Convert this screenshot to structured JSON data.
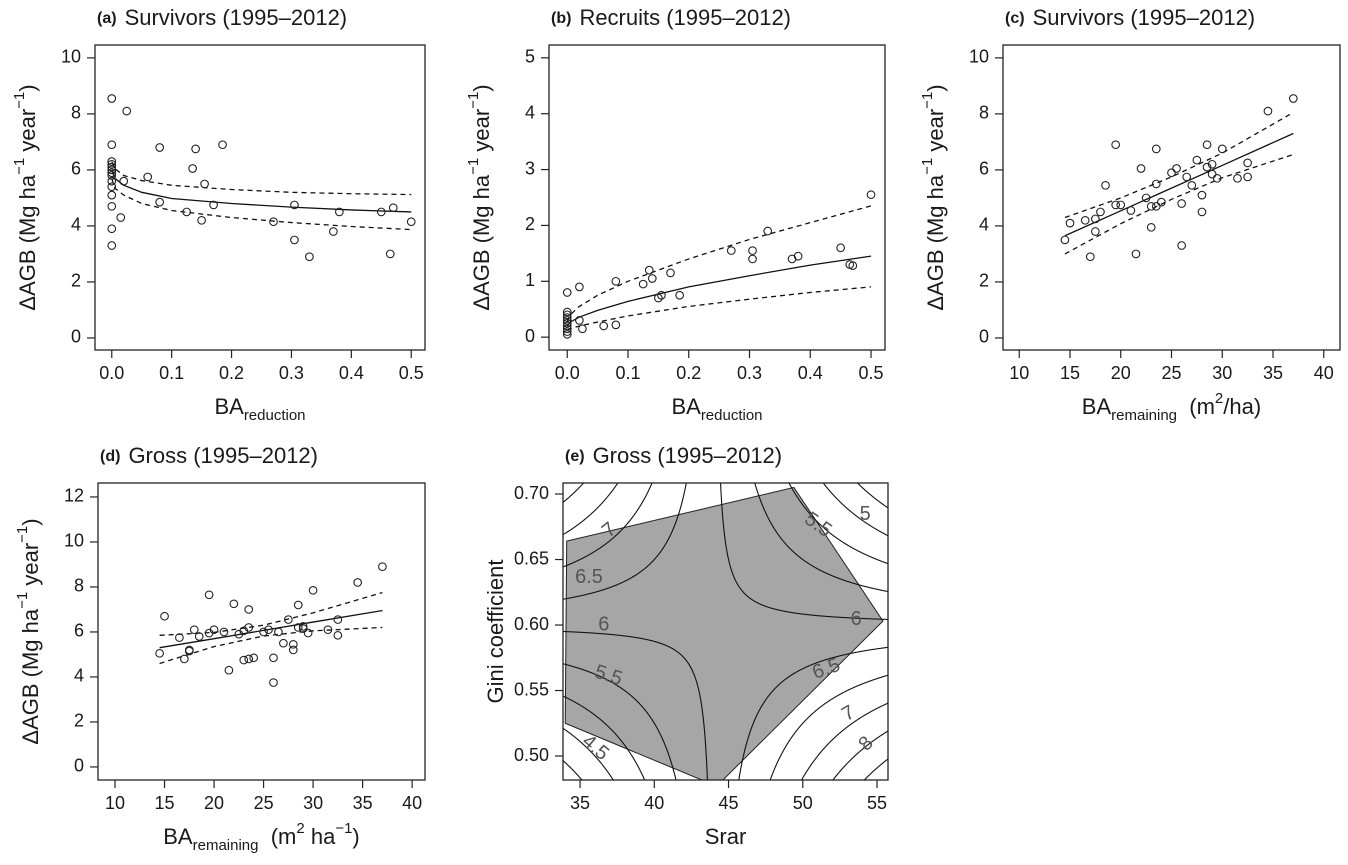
{
  "chart_data": [
    {
      "type": "scatter",
      "panel": "(a)",
      "title": "Survivors (1995–2012)",
      "xlabel": [
        {
          "text": "BA"
        },
        {
          "text": "reduction",
          "script": "sub"
        }
      ],
      "ylabel": [
        {
          "text": "ΔAGB (Mg ha"
        },
        {
          "text": "−1",
          "script": "super"
        },
        {
          "text": " year"
        },
        {
          "text": "−1",
          "script": "super"
        },
        {
          "text": ")"
        }
      ],
      "x": [
        0,
        0,
        0,
        0,
        0,
        0,
        0,
        0,
        0,
        0,
        0,
        0,
        0,
        0,
        0.025,
        0.02,
        0.015,
        0.06,
        0.08,
        0.08,
        0.125,
        0.135,
        0.14,
        0.15,
        0.155,
        0.17,
        0.185,
        0.27,
        0.305,
        0.305,
        0.33,
        0.37,
        0.38,
        0.45,
        0.465,
        0.47,
        0.5
      ],
      "y": [
        8.55,
        6.9,
        6.3,
        6.2,
        6.1,
        6.0,
        5.9,
        5.8,
        5.6,
        5.4,
        5.1,
        4.7,
        3.9,
        3.3,
        8.1,
        5.6,
        4.3,
        5.75,
        6.8,
        4.85,
        4.5,
        6.05,
        6.75,
        4.2,
        5.5,
        4.75,
        6.9,
        4.15,
        4.75,
        3.5,
        2.9,
        3.8,
        4.5,
        4.5,
        3.0,
        4.65,
        4.15
      ],
      "color": "#222222",
      "lines": [
        {
          "dash": false,
          "x": [
            0,
            0.005,
            0.02,
            0.05,
            0.1,
            0.2,
            0.3,
            0.4,
            0.5
          ],
          "y": [
            6.0,
            5.7,
            5.45,
            5.2,
            4.98,
            4.8,
            4.67,
            4.57,
            4.5
          ]
        },
        {
          "dash": true,
          "x": [
            0,
            0.005,
            0.02,
            0.05,
            0.1,
            0.2,
            0.3,
            0.4,
            0.5
          ],
          "y": [
            6.3,
            6.05,
            5.8,
            5.62,
            5.45,
            5.3,
            5.2,
            5.15,
            5.12
          ]
        },
        {
          "dash": true,
          "x": [
            0,
            0.005,
            0.02,
            0.05,
            0.1,
            0.2,
            0.3,
            0.4,
            0.5
          ],
          "y": [
            5.7,
            5.35,
            5.1,
            4.8,
            4.55,
            4.3,
            4.12,
            3.98,
            3.87
          ]
        }
      ],
      "xlim": [
        -0.028,
        0.523
      ],
      "ylim": [
        -0.43,
        10.46
      ],
      "xticks": [
        {
          "value": 0,
          "label": "0.0"
        },
        0.1,
        0.2,
        0.3,
        0.4,
        0.5
      ],
      "yticks": [
        0,
        2,
        4,
        6,
        8,
        10
      ]
    },
    {
      "type": "scatter",
      "panel": "(b)",
      "title": "Recruits (1995–2012)",
      "xlabel": [
        {
          "text": "BA"
        },
        {
          "text": "reduction",
          "script": "sub"
        }
      ],
      "ylabel": [
        {
          "text": "ΔAGB (Mg ha"
        },
        {
          "text": "−1",
          "script": "super"
        },
        {
          "text": " year"
        },
        {
          "text": "−1",
          "script": "super"
        },
        {
          "text": ")"
        }
      ],
      "x": [
        0,
        0,
        0,
        0,
        0,
        0,
        0,
        0,
        0,
        0,
        0.02,
        0.02,
        0.025,
        0.06,
        0.08,
        0.08,
        0.125,
        0.135,
        0.14,
        0.15,
        0.155,
        0.17,
        0.185,
        0.27,
        0.305,
        0.305,
        0.33,
        0.37,
        0.38,
        0.45,
        0.465,
        0.47,
        0.5
      ],
      "y": [
        0.45,
        0.4,
        0.35,
        0.3,
        0.25,
        0.2,
        0.15,
        0.1,
        0.05,
        0.8,
        0.9,
        0.3,
        0.15,
        0.2,
        0.22,
        1.0,
        0.95,
        1.2,
        1.05,
        0.7,
        0.75,
        1.15,
        0.75,
        1.55,
        1.4,
        1.55,
        1.9,
        1.4,
        1.45,
        1.6,
        1.3,
        1.28,
        2.55
      ],
      "color": "#222222",
      "lines": [
        {
          "dash": false,
          "x": [
            0,
            0.005,
            0.02,
            0.05,
            0.1,
            0.2,
            0.3,
            0.4,
            0.5
          ],
          "y": [
            0.2,
            0.27,
            0.36,
            0.48,
            0.64,
            0.9,
            1.1,
            1.29,
            1.45
          ]
        },
        {
          "dash": true,
          "x": [
            0,
            0.005,
            0.02,
            0.05,
            0.1,
            0.2,
            0.3,
            0.4,
            0.5
          ],
          "y": [
            0.28,
            0.4,
            0.55,
            0.75,
            1.0,
            1.4,
            1.75,
            2.05,
            2.35
          ]
        },
        {
          "dash": true,
          "x": [
            0,
            0.005,
            0.02,
            0.05,
            0.1,
            0.2,
            0.3,
            0.4,
            0.5
          ],
          "y": [
            0.12,
            0.15,
            0.2,
            0.27,
            0.38,
            0.55,
            0.68,
            0.8,
            0.9
          ]
        }
      ],
      "xlim": [
        -0.03,
        0.523
      ],
      "ylim": [
        -0.23,
        5.23
      ],
      "xticks": [
        {
          "value": 0,
          "label": "0.0"
        },
        0.1,
        0.2,
        0.3,
        0.4,
        0.5
      ],
      "yticks": [
        0,
        1,
        2,
        3,
        4,
        5
      ]
    },
    {
      "type": "scatter",
      "panel": "(c)",
      "title": "Survivors (1995–2012)",
      "xlabel": [
        {
          "text": "BA"
        },
        {
          "text": "remaining",
          "script": "sub"
        },
        {
          "text": "  (m"
        },
        {
          "text": "2",
          "script": "super"
        },
        {
          "text": "/ha)"
        }
      ],
      "ylabel": [
        {
          "text": "ΔAGB (Mg ha"
        },
        {
          "text": "−1",
          "script": "super"
        },
        {
          "text": " year"
        },
        {
          "text": "−1",
          "script": "super"
        },
        {
          "text": ")"
        }
      ],
      "x": [
        14.5,
        15,
        16.5,
        17,
        17.5,
        17.5,
        18,
        18.5,
        19.5,
        19.5,
        20,
        21,
        21.5,
        22,
        22.5,
        23,
        23,
        23.5,
        23.5,
        23.5,
        24,
        25,
        25.5,
        26,
        26,
        26.5,
        27,
        27.5,
        28,
        28,
        28.5,
        28.5,
        29,
        29,
        29.5,
        30,
        31.5,
        32.5,
        32.5,
        34.5,
        37
      ],
      "y": [
        3.5,
        4.1,
        4.2,
        2.9,
        4.25,
        3.8,
        4.5,
        5.45,
        6.9,
        4.75,
        4.75,
        4.55,
        3.0,
        6.05,
        5.0,
        3.95,
        4.7,
        6.75,
        5.5,
        4.7,
        4.85,
        5.9,
        6.05,
        4.8,
        3.3,
        5.75,
        5.45,
        6.35,
        5.1,
        4.5,
        6.9,
        6.1,
        5.85,
        6.2,
        5.7,
        6.75,
        5.7,
        6.25,
        5.75,
        8.1,
        8.55
      ],
      "color": "#222222",
      "lines": [
        {
          "dash": false,
          "x": [
            14.5,
            20,
            25,
            30,
            37
          ],
          "y": [
            3.65,
            4.54,
            5.35,
            6.16,
            7.3
          ]
        },
        {
          "dash": true,
          "x": [
            14.5,
            20,
            25,
            30,
            37
          ],
          "y": [
            4.3,
            5.0,
            5.75,
            6.6,
            8.05
          ]
        },
        {
          "dash": true,
          "x": [
            14.5,
            20,
            25,
            30,
            37
          ],
          "y": [
            3.0,
            4.08,
            4.95,
            5.72,
            6.55
          ]
        }
      ],
      "xlim": [
        8.4,
        41.6
      ],
      "ylim": [
        -0.43,
        10.46
      ],
      "xticks": [
        10,
        15,
        20,
        25,
        30,
        35,
        40
      ],
      "yticks": [
        0,
        2,
        4,
        6,
        8,
        10
      ]
    },
    {
      "type": "scatter",
      "panel": "(d)",
      "title": "Gross (1995–2012)",
      "xlabel": [
        {
          "text": "BA"
        },
        {
          "text": "remaining",
          "script": "sub"
        },
        {
          "text": "  (m"
        },
        {
          "text": "2",
          "script": "super"
        },
        {
          "text": " ha"
        },
        {
          "text": "−1",
          "script": "super"
        },
        {
          "text": ")"
        }
      ],
      "ylabel": [
        {
          "text": "ΔAGB (Mg ha"
        },
        {
          "text": "−1",
          "script": "super"
        },
        {
          "text": " year"
        },
        {
          "text": "−1",
          "script": "super"
        },
        {
          "text": ")"
        }
      ],
      "x": [
        14.5,
        15,
        16.5,
        17,
        17.5,
        17.5,
        18,
        18.5,
        19.5,
        19.5,
        20,
        21,
        21.5,
        22,
        22.5,
        23,
        23,
        23.5,
        23.5,
        23.5,
        24,
        25,
        25.5,
        26,
        26,
        26.5,
        27,
        27.5,
        28,
        28,
        28.5,
        28.5,
        29,
        29,
        29.5,
        30,
        31.5,
        32.5,
        32.5,
        34.5,
        37
      ],
      "y": [
        5.05,
        6.7,
        5.75,
        4.8,
        5.2,
        5.15,
        6.1,
        5.8,
        7.65,
        5.95,
        6.1,
        6.0,
        4.3,
        7.25,
        5.9,
        4.75,
        6.05,
        7.0,
        6.2,
        4.8,
        4.85,
        6.0,
        6.1,
        4.85,
        3.75,
        6.0,
        5.5,
        6.55,
        5.2,
        5.45,
        7.2,
        6.2,
        6.15,
        6.25,
        5.95,
        7.85,
        6.1,
        6.55,
        5.85,
        8.2,
        8.9
      ],
      "color": "#222222",
      "lines": [
        {
          "dash": false,
          "x": [
            14.5,
            20,
            25,
            30,
            37
          ],
          "y": [
            5.3,
            5.7,
            6.07,
            6.44,
            6.95
          ]
        },
        {
          "dash": true,
          "x": [
            14.5,
            20,
            25,
            30,
            37
          ],
          "y": [
            5.85,
            5.98,
            6.3,
            6.85,
            7.75
          ]
        },
        {
          "dash": true,
          "x": [
            14.5,
            20,
            25,
            30,
            37
          ],
          "y": [
            4.6,
            5.35,
            5.82,
            6.05,
            6.2
          ]
        }
      ],
      "xlim": [
        8.28,
        41.3
      ],
      "ylim": [
        -0.58,
        12.62
      ],
      "xticks": [
        10,
        15,
        20,
        25,
        30,
        35,
        40
      ],
      "yticks": [
        0,
        2,
        4,
        6,
        8,
        10,
        12
      ]
    },
    {
      "type": "contour",
      "panel": "(e)",
      "title": "Gross (1995–2012)",
      "xlabel": [
        {
          "text": "Srar"
        }
      ],
      "ylabel": [
        {
          "text": "Gini coefficient"
        }
      ],
      "hull": {
        "x": [
          34.1,
          49.4,
          55.4,
          44.2,
          34.0
        ],
        "y": [
          0.664,
          0.705,
          0.603,
          0.477,
          0.525
        ],
        "color": "#a6a6a6"
      },
      "surface": {
        "saddle_x": 44,
        "saddle_y": 0.6,
        "saddle_z": 6.1,
        "gradient": 2
      },
      "levels": [
        4,
        4.5,
        5,
        5.5,
        6,
        6.5,
        7,
        7.5,
        8,
        8.5
      ],
      "contour_labels": [
        7,
        6.5,
        6,
        5.5,
        4.5,
        5.5,
        5,
        6,
        6.5,
        7,
        8
      ],
      "xlim": [
        33.85,
        55.74
      ],
      "ylim": [
        0.4817,
        0.7084
      ],
      "xticks": [
        35,
        40,
        45,
        50,
        55
      ],
      "yticks": [
        {
          "value": 0.5,
          "label": "0.50"
        },
        0.55,
        {
          "value": 0.6,
          "label": "0.60"
        },
        0.65,
        {
          "value": 0.7,
          "label": "0.70"
        }
      ]
    }
  ]
}
